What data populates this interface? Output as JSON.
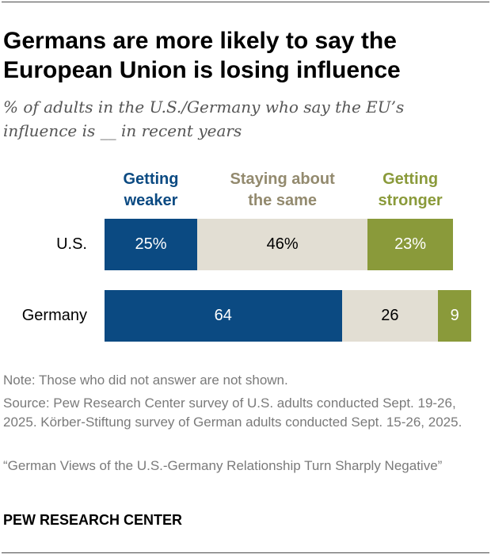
{
  "chart_data": {
    "type": "bar",
    "orientation": "horizontal",
    "stacked": true,
    "title": "Germans are more likely to say the European Union is losing influence",
    "subtitle": "% of adults in the U.S./Germany who say the EU’s influence is __ in recent years",
    "categories": [
      "U.S.",
      "Germany"
    ],
    "series": [
      {
        "name": "Getting weaker",
        "values": [
          25,
          64
        ],
        "labels": [
          "25%",
          "64"
        ],
        "color": "#0b4a82",
        "label_color": "#ffffff",
        "legend_color": "#0b4a82"
      },
      {
        "name": "Staying about the same",
        "values": [
          46,
          26
        ],
        "labels": [
          "46%",
          "26"
        ],
        "color": "#e2ded3",
        "label_color": "#000000",
        "legend_color": "#938a6e"
      },
      {
        "name": "Getting stronger",
        "values": [
          23,
          9
        ],
        "labels": [
          "23%",
          "9"
        ],
        "color": "#8a9a3a",
        "label_color": "#ffffff",
        "legend_color": "#8a9a3a"
      }
    ],
    "xlim": [
      0,
      100
    ],
    "grid": false,
    "legend_placement": "top"
  },
  "notes": {
    "note": "Note: Those who did not answer are not shown.",
    "source": "Source: Pew Research Center survey of U.S. adults conducted Sept. 19-26, 2025. Körber-Stiftung survey of German adults conducted Sept. 15-26, 2025.",
    "report": "“German Views of the U.S.-Germany Relationship Turn Sharply Negative”"
  },
  "brand": "PEW RESEARCH CENTER"
}
